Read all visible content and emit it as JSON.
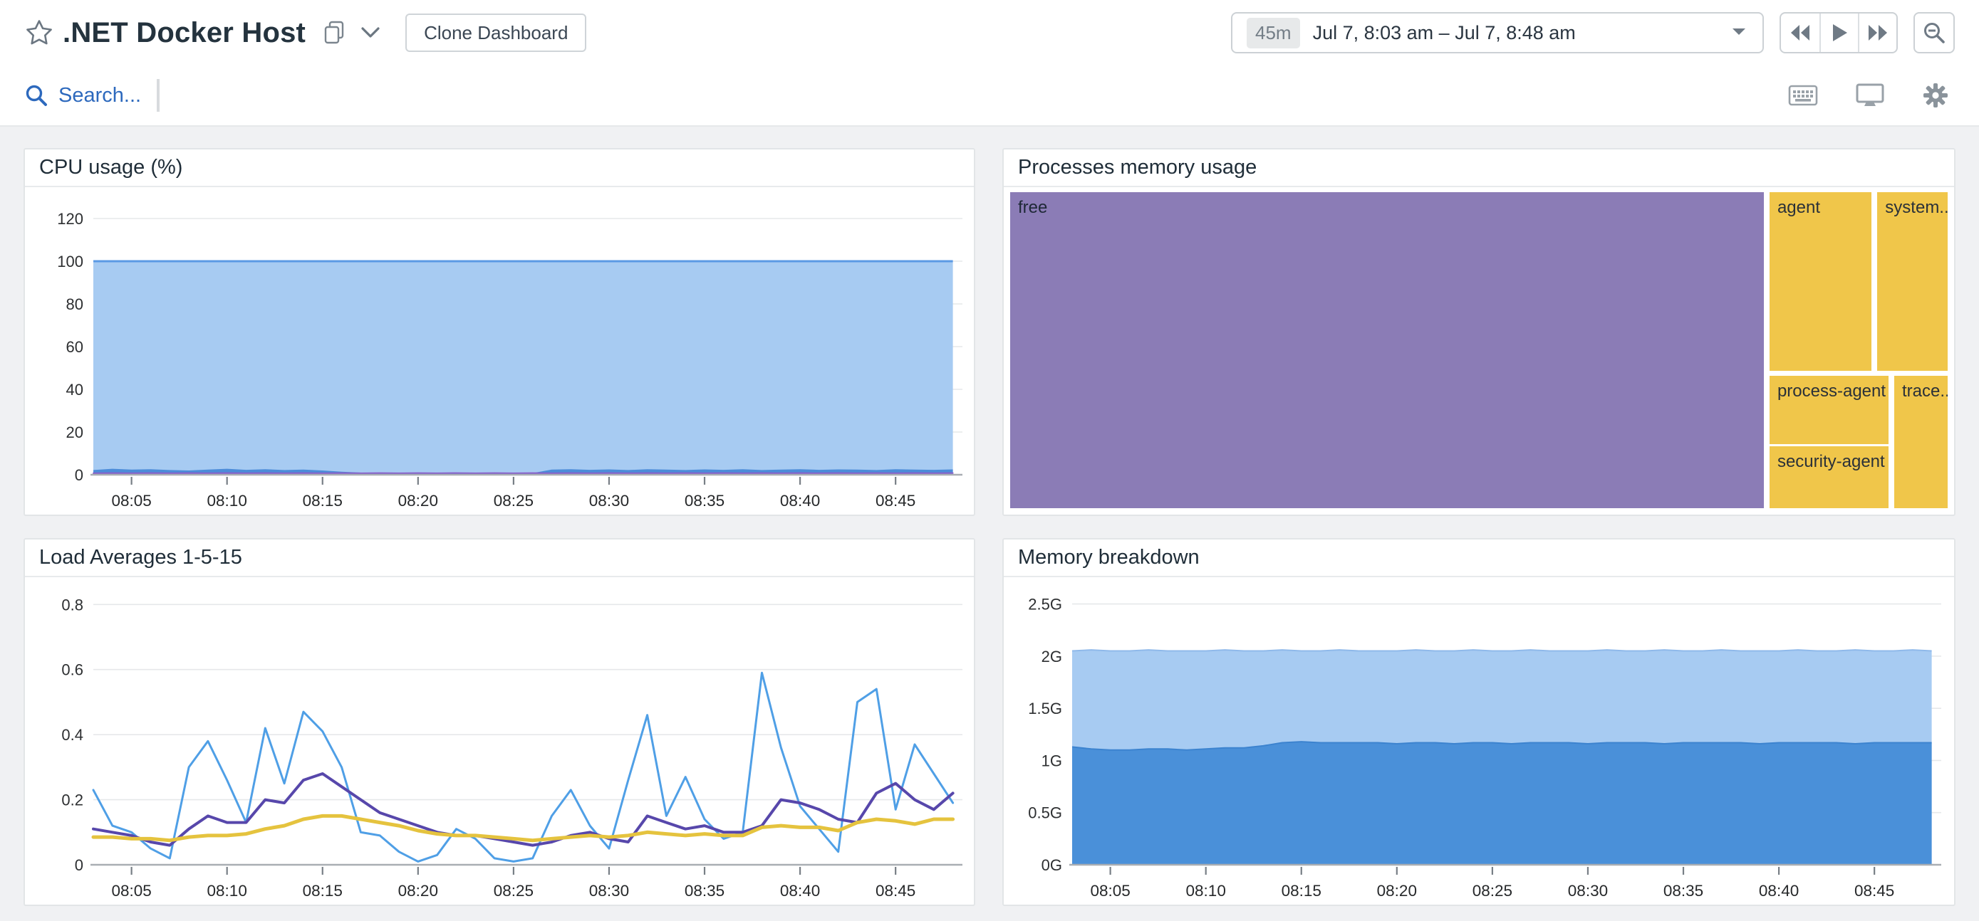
{
  "header": {
    "title": ".NET Docker Host",
    "clone_button_label": "Clone Dashboard",
    "time_range": {
      "badge": "45m",
      "label": "Jul 7, 8:03 am – Jul 7, 8:48 am"
    },
    "icons": [
      "star-icon",
      "copy-icon",
      "chevron-down-icon",
      "caret-down-icon",
      "rewind-icon",
      "play-icon",
      "fast-forward-icon",
      "zoom-out-icon",
      "search-icon",
      "keyboard-icon",
      "monitor-icon",
      "gear-icon"
    ]
  },
  "search": {
    "placeholder": "Search..."
  },
  "colors": {
    "accent_blue": "#2d69bd",
    "cpu_area_fill": "#a7cbf2",
    "cpu_area_stroke": "#5b9ae4",
    "cpu_busy_fill": "#4c8cd9",
    "cpu_purple_line": "#8a5fc8",
    "load1_blue": "#4f9fe6",
    "load5_purple": "#5747ab",
    "load15_yellow": "#e5c33e",
    "mem_free_fill": "#a7cbf2",
    "mem_used_fill": "#4a90d9",
    "treemap_purple": "#8b7cb6",
    "treemap_yellow": "#f0c64a"
  },
  "chart_data": [
    {
      "type": "area",
      "title": "CPU usage (%)",
      "xlim": [
        3,
        48.5
      ],
      "x_start_minute": 3,
      "x_ticks": [
        {
          "min": 5,
          "label": "08:05"
        },
        {
          "min": 10,
          "label": "08:10"
        },
        {
          "min": 15,
          "label": "08:15"
        },
        {
          "min": 20,
          "label": "08:20"
        },
        {
          "min": 25,
          "label": "08:25"
        },
        {
          "min": 30,
          "label": "08:30"
        },
        {
          "min": 35,
          "label": "08:35"
        },
        {
          "min": 40,
          "label": "08:40"
        },
        {
          "min": 45,
          "label": "08:45"
        }
      ],
      "y_ticks": [
        {
          "value": 0,
          "label": "0"
        },
        {
          "value": 20,
          "label": "20"
        },
        {
          "value": 40,
          "label": "40"
        },
        {
          "value": 60,
          "label": "60"
        },
        {
          "value": 80,
          "label": "80"
        },
        {
          "value": 100,
          "label": "100"
        },
        {
          "value": 120,
          "label": "120"
        }
      ],
      "ylim": [
        0,
        128
      ],
      "grid": true,
      "legend": "none",
      "series": [
        {
          "name": "total-area",
          "kind": "area",
          "fill": "#a7cbf2",
          "stroke": "#5b9ae4",
          "stroke_width": 3,
          "values": [
            100,
            100,
            100,
            100,
            100,
            100,
            100,
            100,
            100,
            100,
            100,
            100,
            100,
            100,
            100,
            100,
            100,
            100,
            100,
            100,
            100,
            100,
            100,
            100,
            100,
            100,
            100,
            100,
            100,
            100,
            100,
            100,
            100,
            100,
            100,
            100,
            100,
            100,
            100,
            100,
            100,
            100,
            100,
            100,
            100,
            100
          ]
        },
        {
          "name": "busy-area",
          "kind": "area",
          "fill": "#4c8cd9",
          "stroke": "",
          "stroke_width": 0,
          "values": [
            2.2,
            2.8,
            2.4,
            2.6,
            2.2,
            2.0,
            2.4,
            2.8,
            2.3,
            2.6,
            2.2,
            2.4,
            2.0,
            1.4,
            1.0,
            0.8,
            0.9,
            0.8,
            1.0,
            0.9,
            0.8,
            1.0,
            0.9,
            0.8,
            2.4,
            2.6,
            2.3,
            2.5,
            2.2,
            2.6,
            2.4,
            2.2,
            2.5,
            2.3,
            2.6,
            2.2,
            2.4,
            2.6,
            2.3,
            2.5,
            2.4,
            2.2,
            2.6,
            2.4,
            2.3,
            2.5
          ]
        },
        {
          "name": "purple-line",
          "kind": "line",
          "stroke": "#8a5fc8",
          "stroke_width": 2,
          "values": [
            0.7,
            0.8,
            0.7,
            0.8,
            0.7,
            0.8,
            0.7,
            0.8,
            0.7,
            0.8,
            0.7,
            0.8,
            0.7,
            0.8,
            0.7,
            0.8,
            0.7,
            0.8,
            0.7,
            0.8,
            0.7,
            0.8,
            0.7,
            0.8,
            0.7,
            0.8,
            0.7,
            0.8,
            0.7,
            0.8,
            0.7,
            0.8,
            0.7,
            0.8,
            0.7,
            0.8,
            0.7,
            0.8,
            0.7,
            0.8,
            0.7,
            0.8,
            0.7,
            0.8,
            0.7,
            0.8
          ]
        }
      ]
    },
    {
      "type": "treemap",
      "title": "Processes memory usage",
      "items": [
        {
          "label": "free",
          "color": "#8b7cb6",
          "x": 0,
          "y": 0,
          "w": 80.4,
          "h": 100
        },
        {
          "label": "agent",
          "color": "#f0c64a",
          "x": 81.0,
          "y": 0,
          "w": 10.9,
          "h": 56.5
        },
        {
          "label": "system...",
          "color": "#f0c64a",
          "x": 92.5,
          "y": 0,
          "w": 7.5,
          "h": 56.5
        },
        {
          "label": "process-agent",
          "color": "#f0c64a",
          "x": 81.0,
          "y": 58.0,
          "w": 12.7,
          "h": 21.7
        },
        {
          "label": "trace...",
          "color": "#f0c64a",
          "x": 94.3,
          "y": 58.0,
          "w": 5.7,
          "h": 42.0
        },
        {
          "label": "security-agent",
          "color": "#f0c64a",
          "x": 81.0,
          "y": 80.4,
          "w": 12.7,
          "h": 19.6
        }
      ]
    },
    {
      "type": "line",
      "title": "Load Averages 1-5-15",
      "xlim": [
        3,
        48.5
      ],
      "x_start_minute": 3,
      "x_ticks": [
        {
          "min": 5,
          "label": "08:05"
        },
        {
          "min": 10,
          "label": "08:10"
        },
        {
          "min": 15,
          "label": "08:15"
        },
        {
          "min": 20,
          "label": "08:20"
        },
        {
          "min": 25,
          "label": "08:25"
        },
        {
          "min": 30,
          "label": "08:30"
        },
        {
          "min": 35,
          "label": "08:35"
        },
        {
          "min": 40,
          "label": "08:40"
        },
        {
          "min": 45,
          "label": "08:45"
        }
      ],
      "y_ticks": [
        {
          "value": 0,
          "label": "0"
        },
        {
          "value": 0.2,
          "label": "0.2"
        },
        {
          "value": 0.4,
          "label": "0.4"
        },
        {
          "value": 0.6,
          "label": "0.6"
        },
        {
          "value": 0.8,
          "label": "0.8"
        }
      ],
      "ylim": [
        0,
        0.84
      ],
      "grid": true,
      "legend": "none",
      "series": [
        {
          "name": "load-1",
          "kind": "line",
          "stroke": "#4f9fe6",
          "stroke_width": 3,
          "values": [
            0.23,
            0.12,
            0.1,
            0.05,
            0.02,
            0.3,
            0.38,
            0.26,
            0.13,
            0.42,
            0.25,
            0.47,
            0.41,
            0.3,
            0.1,
            0.09,
            0.04,
            0.01,
            0.03,
            0.11,
            0.08,
            0.02,
            0.01,
            0.02,
            0.15,
            0.23,
            0.12,
            0.05,
            0.26,
            0.46,
            0.15,
            0.27,
            0.14,
            0.08,
            0.1,
            0.59,
            0.36,
            0.18,
            0.11,
            0.04,
            0.5,
            0.54,
            0.17,
            0.37,
            0.28,
            0.19
          ]
        },
        {
          "name": "load-5",
          "kind": "line",
          "stroke": "#5747ab",
          "stroke_width": 4,
          "values": [
            0.11,
            0.1,
            0.09,
            0.07,
            0.06,
            0.11,
            0.15,
            0.13,
            0.13,
            0.2,
            0.19,
            0.26,
            0.28,
            0.24,
            0.2,
            0.16,
            0.14,
            0.12,
            0.1,
            0.09,
            0.09,
            0.08,
            0.07,
            0.06,
            0.07,
            0.09,
            0.1,
            0.08,
            0.07,
            0.15,
            0.13,
            0.11,
            0.12,
            0.1,
            0.1,
            0.12,
            0.2,
            0.19,
            0.17,
            0.14,
            0.13,
            0.22,
            0.25,
            0.2,
            0.17,
            0.22
          ]
        },
        {
          "name": "load-15",
          "kind": "line",
          "stroke": "#e5c33e",
          "stroke_width": 5,
          "values": [
            0.085,
            0.085,
            0.08,
            0.08,
            0.075,
            0.085,
            0.09,
            0.09,
            0.095,
            0.11,
            0.12,
            0.14,
            0.15,
            0.15,
            0.14,
            0.13,
            0.12,
            0.105,
            0.095,
            0.09,
            0.09,
            0.085,
            0.08,
            0.075,
            0.08,
            0.085,
            0.09,
            0.085,
            0.09,
            0.1,
            0.095,
            0.09,
            0.095,
            0.09,
            0.09,
            0.115,
            0.12,
            0.115,
            0.115,
            0.105,
            0.13,
            0.14,
            0.135,
            0.125,
            0.14,
            0.14
          ]
        }
      ]
    },
    {
      "type": "area",
      "title": "Memory breakdown",
      "xlim": [
        3,
        48.5
      ],
      "x_start_minute": 3,
      "x_ticks": [
        {
          "min": 5,
          "label": "08:05"
        },
        {
          "min": 10,
          "label": "08:10"
        },
        {
          "min": 15,
          "label": "08:15"
        },
        {
          "min": 20,
          "label": "08:20"
        },
        {
          "min": 25,
          "label": "08:25"
        },
        {
          "min": 30,
          "label": "08:30"
        },
        {
          "min": 35,
          "label": "08:35"
        },
        {
          "min": 40,
          "label": "08:40"
        },
        {
          "min": 45,
          "label": "08:45"
        }
      ],
      "y_ticks": [
        {
          "value": 0,
          "label": "0G"
        },
        {
          "value": 0.5,
          "label": "0.5G"
        },
        {
          "value": 1,
          "label": "1G"
        },
        {
          "value": 1.5,
          "label": "1.5G"
        },
        {
          "value": 2,
          "label": "2G"
        },
        {
          "value": 2.5,
          "label": "2.5G"
        }
      ],
      "ylim": [
        0,
        2.62
      ],
      "grid": true,
      "legend": "none",
      "series": [
        {
          "name": "total-area",
          "kind": "area",
          "fill": "#a7cbf2",
          "stroke": "#8fb9ea",
          "stroke_width": 2,
          "values": [
            2.05,
            2.06,
            2.05,
            2.05,
            2.06,
            2.05,
            2.05,
            2.05,
            2.06,
            2.05,
            2.05,
            2.06,
            2.05,
            2.05,
            2.06,
            2.05,
            2.05,
            2.05,
            2.06,
            2.05,
            2.05,
            2.06,
            2.05,
            2.05,
            2.06,
            2.05,
            2.05,
            2.05,
            2.06,
            2.05,
            2.05,
            2.06,
            2.05,
            2.05,
            2.06,
            2.05,
            2.05,
            2.05,
            2.06,
            2.05,
            2.05,
            2.06,
            2.05,
            2.05,
            2.06,
            2.05
          ]
        },
        {
          "name": "used-area",
          "kind": "area",
          "fill": "#4a90d9",
          "stroke": "#3c83cf",
          "stroke_width": 2,
          "values": [
            1.13,
            1.11,
            1.1,
            1.1,
            1.11,
            1.11,
            1.1,
            1.11,
            1.12,
            1.12,
            1.14,
            1.17,
            1.18,
            1.17,
            1.17,
            1.17,
            1.17,
            1.16,
            1.17,
            1.17,
            1.16,
            1.17,
            1.17,
            1.16,
            1.17,
            1.17,
            1.17,
            1.16,
            1.17,
            1.17,
            1.17,
            1.16,
            1.17,
            1.17,
            1.17,
            1.17,
            1.16,
            1.17,
            1.17,
            1.17,
            1.17,
            1.16,
            1.17,
            1.17,
            1.17,
            1.17
          ]
        }
      ]
    }
  ]
}
